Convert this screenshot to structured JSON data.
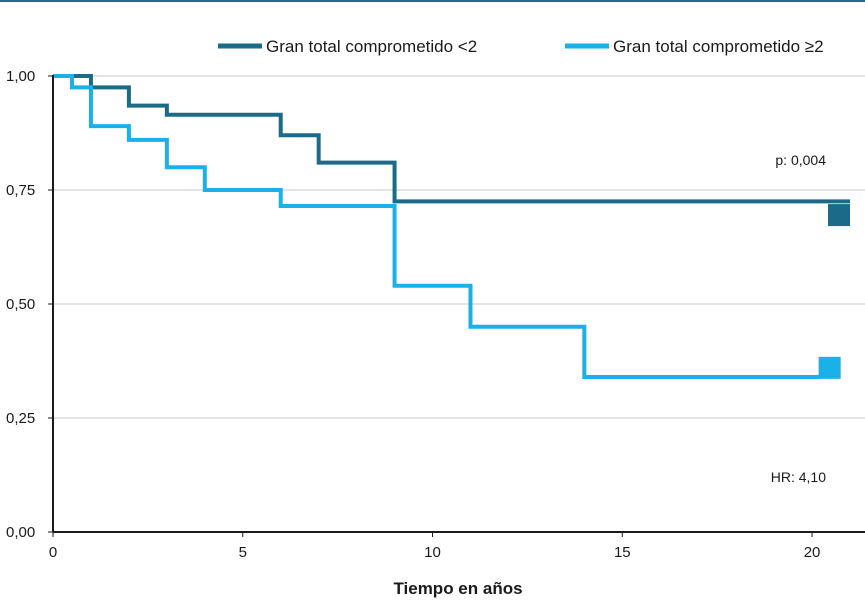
{
  "chart_data": {
    "type": "line",
    "step": true,
    "title": "",
    "xlabel": "Tiempo en años",
    "ylabel": "",
    "xlim": [
      0,
      21
    ],
    "ylim": [
      0,
      1
    ],
    "x_ticks": [
      0,
      5,
      10,
      15,
      20
    ],
    "x_tick_labels": [
      "0",
      "5",
      "10",
      "15",
      "20"
    ],
    "y_ticks": [
      0,
      0.25,
      0.5,
      0.75,
      1.0
    ],
    "y_tick_labels": [
      "0,00",
      "0,25",
      "0,50",
      "0,75",
      "1,00"
    ],
    "grid": "horizontal",
    "legend_position": "top",
    "series": [
      {
        "name": "Gran total comprometido <2",
        "color": "#1a6a88",
        "x": [
          0,
          1,
          2,
          3,
          6,
          7,
          9,
          21
        ],
        "y": [
          1.0,
          0.975,
          0.935,
          0.915,
          0.87,
          0.81,
          0.725,
          0.725
        ],
        "end_marker_y": 0.695
      },
      {
        "name": "Gran total comprometido ≥2",
        "color": "#1ab0e8",
        "x": [
          0,
          0.5,
          1,
          2,
          3,
          4,
          6,
          9,
          11,
          14,
          20.2
        ],
        "y": [
          1.0,
          0.975,
          0.89,
          0.86,
          0.8,
          0.75,
          0.715,
          0.54,
          0.45,
          0.34,
          0.34
        ],
        "end_marker_y": 0.36
      }
    ],
    "annotations": [
      {
        "text": "p: 0,004"
      },
      {
        "text": "HR: 4,10"
      }
    ]
  }
}
